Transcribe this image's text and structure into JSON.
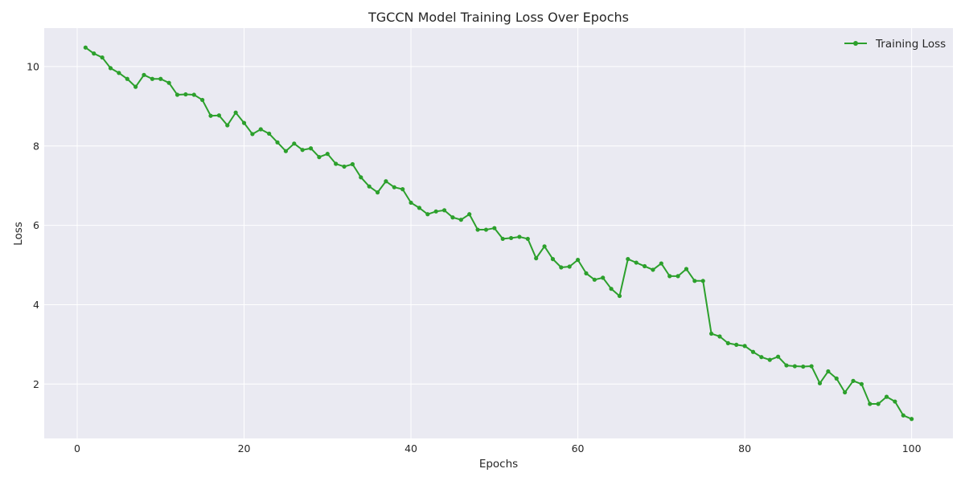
{
  "chart_data": {
    "type": "line",
    "title": "TGCCN Model Training Loss Over Epochs",
    "xlabel": "Epochs",
    "ylabel": "Loss",
    "xlim": [
      -3.95,
      104.95
    ],
    "ylim": [
      0.63,
      10.97
    ],
    "xticks": [
      0,
      20,
      40,
      60,
      80,
      100
    ],
    "yticks": [
      2,
      4,
      6,
      8,
      10
    ],
    "grid": true,
    "legend_position": "top-right",
    "colors": {
      "background": "#eaeaf2",
      "grid": "#ffffff",
      "series": "#2ca02c"
    },
    "series": [
      {
        "name": "Training Loss",
        "x": [
          1,
          2,
          3,
          4,
          5,
          6,
          7,
          8,
          9,
          10,
          11,
          12,
          13,
          14,
          15,
          16,
          17,
          18,
          19,
          20,
          21,
          22,
          23,
          24,
          25,
          26,
          27,
          28,
          29,
          30,
          31,
          32,
          33,
          34,
          35,
          36,
          37,
          38,
          39,
          40,
          41,
          42,
          43,
          44,
          45,
          46,
          47,
          48,
          49,
          50,
          51,
          52,
          53,
          54,
          55,
          56,
          57,
          58,
          59,
          60,
          61,
          62,
          63,
          64,
          65,
          66,
          67,
          68,
          69,
          70,
          71,
          72,
          73,
          74,
          75,
          76,
          77,
          78,
          79,
          80,
          81,
          82,
          83,
          84,
          85,
          86,
          87,
          88,
          89,
          90,
          91,
          92,
          93,
          94,
          95,
          96,
          97,
          98,
          99,
          100
        ],
        "values": [
          10.48,
          10.33,
          10.23,
          9.96,
          9.84,
          9.69,
          9.49,
          9.79,
          9.69,
          9.69,
          9.59,
          9.29,
          9.3,
          9.29,
          9.16,
          8.76,
          8.77,
          8.52,
          8.84,
          8.58,
          8.3,
          8.42,
          8.31,
          8.09,
          7.87,
          8.06,
          7.9,
          7.94,
          7.72,
          7.8,
          7.55,
          7.48,
          7.54,
          7.21,
          6.98,
          6.83,
          7.11,
          6.96,
          6.91,
          6.57,
          6.44,
          6.28,
          6.35,
          6.38,
          6.2,
          6.14,
          6.28,
          5.89,
          5.89,
          5.93,
          5.66,
          5.68,
          5.71,
          5.66,
          5.17,
          5.47,
          5.15,
          4.94,
          4.96,
          5.13,
          4.79,
          4.63,
          4.68,
          4.4,
          4.22,
          5.15,
          5.06,
          4.97,
          4.88,
          5.04,
          4.72,
          4.72,
          4.9,
          4.6,
          4.6,
          3.27,
          3.2,
          3.03,
          2.99,
          2.96,
          2.81,
          2.68,
          2.61,
          2.69,
          2.47,
          2.45,
          2.44,
          2.45,
          2.02,
          2.32,
          2.14,
          1.79,
          2.08,
          2.0,
          1.5,
          1.5,
          1.68,
          1.56,
          1.21,
          1.12
        ]
      }
    ]
  }
}
